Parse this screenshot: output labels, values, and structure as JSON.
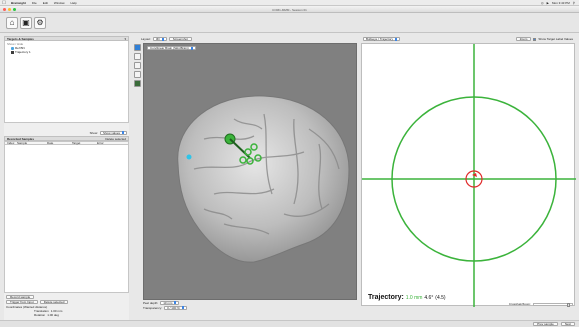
{
  "menubar": {
    "app_name": "Brainsight",
    "menus": [
      "File",
      "Edit",
      "Window",
      "Help"
    ],
    "clock": "Mon 3:43 PM"
  },
  "window": {
    "title": "COM1-MMM - Session 01"
  },
  "left_panel": {
    "title": "Targets & Samples",
    "tree_header": "Show / Hide",
    "tree_items": [
      {
        "label": "Ref BN",
        "kind": "reference"
      },
      {
        "label": "Trajectory 1",
        "kind": "trajectory"
      }
    ],
    "props_label": "Show:",
    "props_select": "Show values",
    "table_title": "Recorded Samples",
    "table_action": "Delete selected",
    "table_columns": [
      "Index",
      "Sample",
      "Date",
      "Target",
      "Error"
    ],
    "bottom_buttons": {
      "record": "Record sample",
      "trigger": "Trigger from Input",
      "delete": "Delete selected"
    },
    "coords_label": "Coordinates (Wanted distance)",
    "translation_label": "Translation",
    "translation_value": "1.00 mm",
    "rotation_label": "Rotation",
    "rotation_value": "1.00 deg"
  },
  "view3d": {
    "layout_label": "Layout:",
    "layout_value": "3D",
    "view_btn": "Screenshot",
    "surface_select": "Curvilinear Brain (Skin/Brain)",
    "footer_dist_label": "Peel depth:",
    "footer_dist_value": "10 mm",
    "footer_trans_label": "Transparency:",
    "footer_trans_value": "0 / 100 %"
  },
  "view2d": {
    "select_value": "Bullseye / Trajectory",
    "head_btn": "Zoom",
    "checkbox_label": "Show Target Label Values",
    "readout_label": "Trajectory:",
    "readout_value": "1.0 mm",
    "readout_angle": "4.6°",
    "readout_unit": "(4.5)",
    "zoom_label": "Crosshair/Zoom:",
    "slider_value": 0.9
  },
  "statusbar": {
    "prev_label": "Prev sample",
    "next_label": "Next"
  },
  "colors": {
    "green": "#3bb33b",
    "red": "#e02a2a",
    "accent": "#3d85e4",
    "view_bg": "#808080"
  }
}
